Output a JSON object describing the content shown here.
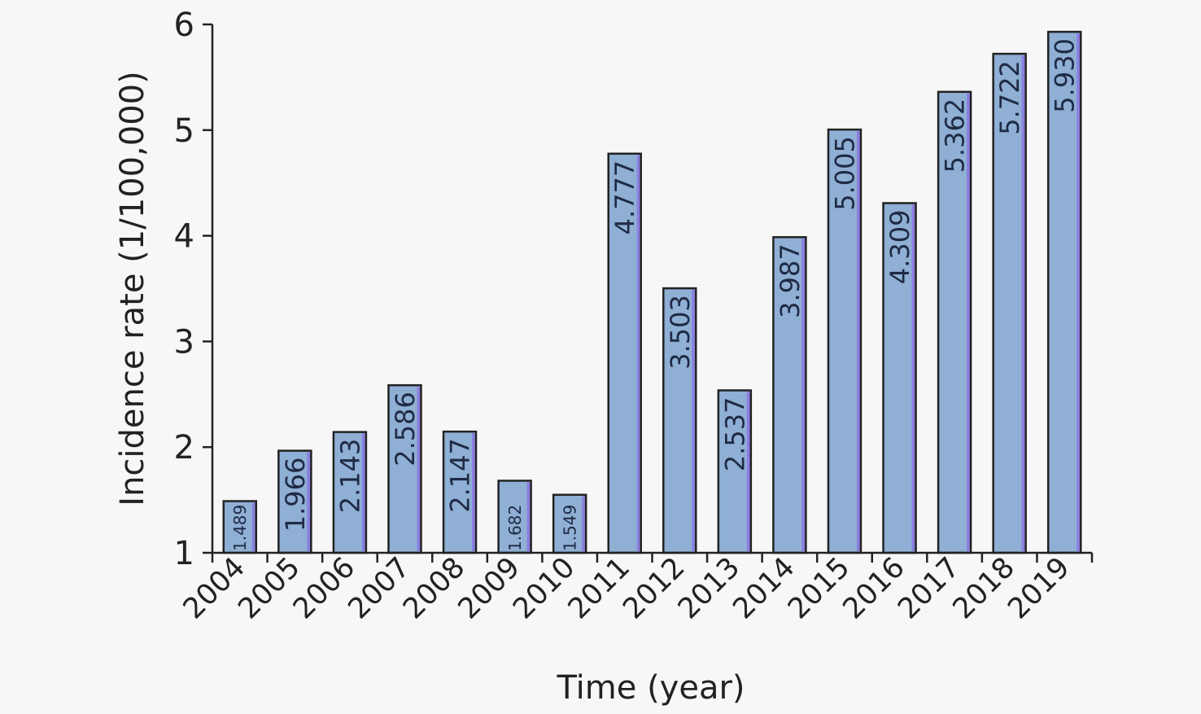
{
  "chart_data": {
    "type": "bar",
    "title": "",
    "xlabel": "Time (year)",
    "ylabel": "Incidence rate (1/100,000)",
    "categories": [
      "2004",
      "2005",
      "2006",
      "2007",
      "2008",
      "2009",
      "2010",
      "2011",
      "2012",
      "2013",
      "2014",
      "2015",
      "2016",
      "2017",
      "2018",
      "2019"
    ],
    "values": [
      1.489,
      1.966,
      2.143,
      2.586,
      2.147,
      1.682,
      1.549,
      4.777,
      3.503,
      2.537,
      3.987,
      5.005,
      4.309,
      5.362,
      5.722,
      5.93
    ],
    "value_labels": [
      "1.489",
      "1.966",
      "2.143",
      "2.586",
      "2.147",
      "1.682",
      "1.549",
      "4.777",
      "3.503",
      "2.537",
      "3.987",
      "5.005",
      "4.309",
      "5.362",
      "5.722",
      "5.930"
    ],
    "ylim": [
      1,
      6
    ],
    "yticks": [
      1,
      2,
      3,
      4,
      5,
      6
    ],
    "grid": false,
    "legend": "none",
    "colors": {
      "bar_fill": "#8fafd4",
      "bar_edge": "#8a7fe0",
      "outline": "#222222",
      "label_text": "#1f2a44"
    }
  }
}
